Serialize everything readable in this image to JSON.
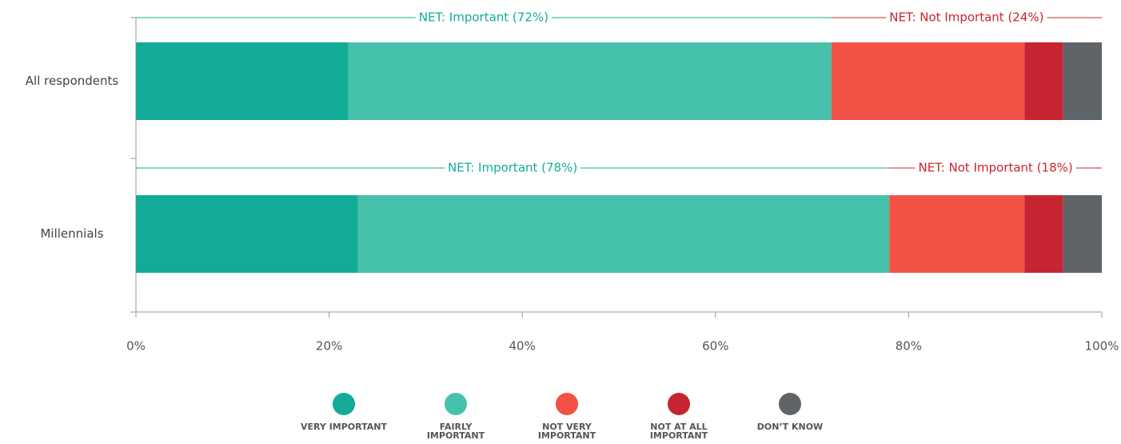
{
  "chart_data": {
    "type": "bar",
    "orientation": "horizontal",
    "stacked": true,
    "categories": [
      "All respondents",
      "Millennials"
    ],
    "series": [
      {
        "name": "VERY IMPORTANT",
        "color": "#12ab97",
        "values": [
          22,
          23
        ]
      },
      {
        "name": "FAIRLY IMPORTANT",
        "color": "#46c1ab",
        "values": [
          50,
          55
        ]
      },
      {
        "name": "NOT VERY IMPORTANT",
        "color": "#f25246",
        "values": [
          20,
          14
        ]
      },
      {
        "name": "NOT AT ALL IMPORTANT",
        "color": "#c62430",
        "values": [
          4,
          4
        ]
      },
      {
        "name": "DON’T KNOW",
        "color": "#5f6468",
        "values": [
          4,
          4
        ]
      }
    ],
    "net_labels": [
      [
        "NET: Important (72%)",
        "NET: Not Important (24%)"
      ],
      [
        "NET: Important (78%)",
        "NET: Not Important (18%)"
      ]
    ],
    "xlim": [
      0,
      100
    ],
    "xticks": [
      {
        "value": 0,
        "label": "0%"
      },
      {
        "value": 20,
        "label": "20%"
      },
      {
        "value": 40,
        "label": "40%"
      },
      {
        "value": 60,
        "label": "60%"
      },
      {
        "value": 80,
        "label": "80%"
      },
      {
        "value": 100,
        "label": "100%"
      }
    ]
  }
}
